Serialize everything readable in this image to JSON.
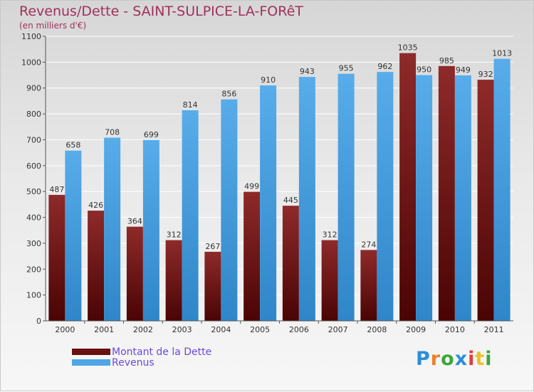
{
  "title": "Revenus/Dette - SAINT-SULPICE-LA-FORêT",
  "subtitle": "(en milliers d'€)",
  "chart_data": {
    "type": "bar",
    "title": "Revenus/Dette - SAINT-SULPICE-LA-FORêT",
    "subtitle": "(en milliers d'€)",
    "categories": [
      "2000",
      "2001",
      "2002",
      "2003",
      "2004",
      "2005",
      "2006",
      "2007",
      "2008",
      "2009",
      "2010",
      "2011"
    ],
    "series": [
      {
        "name": "Montant de la Dette",
        "color": "#7a1a1a",
        "values": [
          487,
          426,
          364,
          312,
          267,
          499,
          445,
          312,
          274,
          1035,
          985,
          932
        ]
      },
      {
        "name": "Revenus",
        "color": "#4ea6e6",
        "values": [
          658,
          708,
          699,
          814,
          856,
          910,
          943,
          955,
          962,
          950,
          949,
          1013
        ]
      }
    ],
    "ylim": [
      0,
      1100
    ],
    "yticks": [
      0,
      100,
      200,
      300,
      400,
      500,
      600,
      700,
      800,
      900,
      1000,
      1100
    ],
    "grid": true,
    "legend_position": "bottom-left"
  },
  "legend": {
    "items": [
      {
        "label": "Montant de la Dette",
        "color": "#7a1a1a"
      },
      {
        "label": "Revenus",
        "color": "#4ea6e6"
      }
    ]
  },
  "logo": {
    "text": "Proxiti",
    "colors": [
      "#2b8fd8",
      "#e8822a",
      "#3aa83a",
      "#2b8fd8",
      "#e83a3a",
      "#e8c22a",
      "#3aa83a"
    ]
  }
}
